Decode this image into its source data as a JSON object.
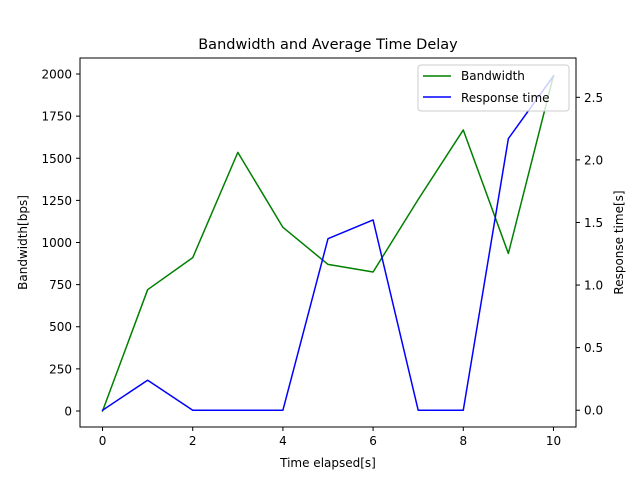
{
  "chart_data": {
    "type": "line",
    "title": "Bandwidth and Average Time Delay",
    "xlabel": "Time elapsed[s]",
    "ylabel_left": "Bandwidth[bps]",
    "ylabel_right": "Response time[s]",
    "x": [
      0,
      1,
      2,
      3,
      4,
      5,
      6,
      7,
      8,
      9,
      10
    ],
    "xlim": [
      -0.5,
      10.5
    ],
    "xticks": [
      0,
      2,
      4,
      6,
      8,
      10
    ],
    "ylim_left": [
      -95,
      2095
    ],
    "yticks_left": [
      0,
      250,
      500,
      750,
      1000,
      1250,
      1500,
      1750,
      2000
    ],
    "ylim_right": [
      -0.134,
      2.814
    ],
    "yticks_right": [
      0.0,
      0.5,
      1.0,
      1.5,
      2.0,
      2.5
    ],
    "yticks_right_labels": [
      "0.0",
      "0.5",
      "1.0",
      "1.5",
      "2.0",
      "2.5"
    ],
    "grid": false,
    "legend_position": "top-right",
    "series": [
      {
        "name": "Bandwidth",
        "axis": "left",
        "color": "#008000",
        "values": [
          0,
          720,
          910,
          1535,
          1090,
          870,
          825,
          1255,
          1668,
          935,
          1990
        ]
      },
      {
        "name": "Response time",
        "axis": "right",
        "color": "#0000ff",
        "values": [
          0,
          0.24,
          0,
          0,
          0,
          1.37,
          1.52,
          0,
          0,
          2.17,
          2.67
        ]
      }
    ]
  }
}
